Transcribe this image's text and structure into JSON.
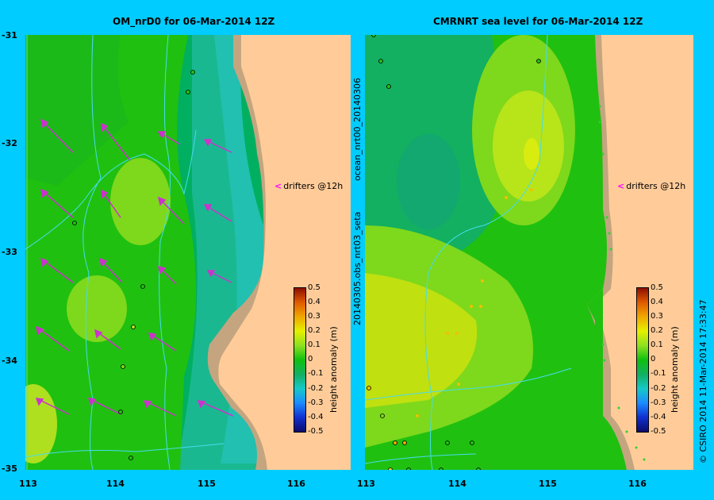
{
  "left_panel": {
    "title": "OM_nrD0 for 06-Mar-2014 12Z"
  },
  "right_panel": {
    "title": "CMRNRT sea level  for 06-Mar-2014 12Z"
  },
  "y_ticks": [
    "-31",
    "-32",
    "-33",
    "-34",
    "-35"
  ],
  "x_ticks_left": [
    "113",
    "114",
    "115",
    "116"
  ],
  "x_ticks_right": [
    "113",
    "114",
    "115",
    "116"
  ],
  "middle_labels": {
    "top": "ocean_nrt00_20140306",
    "bottom": "20140305.obs_nrt03_seta"
  },
  "drifters_label": "drifters @12h",
  "colorbar": {
    "title": "height anomaly (m)",
    "ticks": [
      "0.5",
      "0.4",
      "0.3",
      "0.2",
      "0.1",
      "0",
      "-0.1",
      "-0.2",
      "-0.3",
      "-0.4",
      "-0.5"
    ]
  },
  "footer": "© CSIRO 2014   11-Mar-2014 17:33:47",
  "colors": {
    "background": "#00ccff",
    "land": "#ffcc99",
    "shelf": "#c4a580",
    "drifter_arrow": "#cc33cc",
    "bathymetry": "#44ddee"
  },
  "scale": {
    "min": -0.5,
    "max": 0.5
  }
}
